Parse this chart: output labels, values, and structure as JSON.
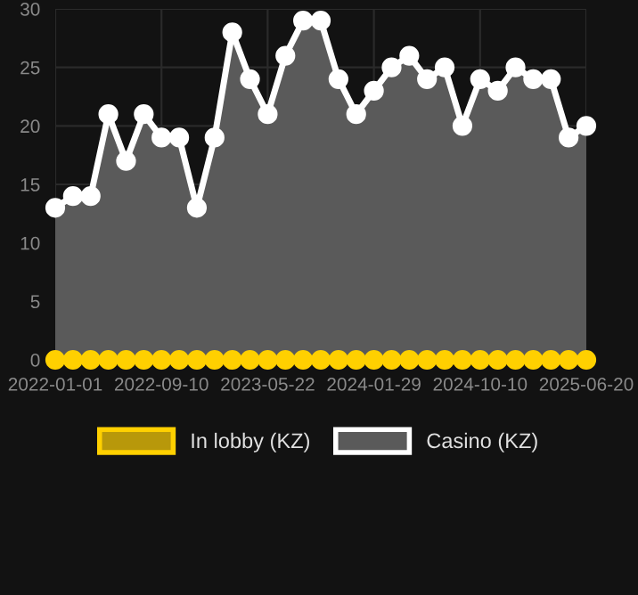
{
  "chart_data": {
    "type": "area",
    "categories": [
      "2022-01-01",
      null,
      null,
      null,
      null,
      null,
      "2022-09-10",
      null,
      null,
      null,
      null,
      null,
      "2023-05-22",
      null,
      null,
      null,
      null,
      null,
      "2024-01-29",
      null,
      null,
      null,
      null,
      null,
      "2024-10-10",
      null,
      null,
      null,
      null,
      null,
      "2025-06-20"
    ],
    "series": [
      {
        "name": "In lobby (KZ)",
        "type": "line",
        "color": "#ffd000",
        "values": [
          0,
          0,
          0,
          0,
          0,
          0,
          0,
          0,
          0,
          0,
          0,
          0,
          0,
          0,
          0,
          0,
          0,
          0,
          0,
          0,
          0,
          0,
          0,
          0,
          0,
          0,
          0,
          0,
          0,
          0,
          0
        ]
      },
      {
        "name": "Casino (KZ)",
        "color": "#5a5a5a",
        "values": [
          13,
          14,
          14,
          21,
          17,
          21,
          19,
          19,
          13,
          19,
          28,
          24,
          21,
          26,
          29,
          29,
          24,
          21,
          23,
          25,
          26,
          24,
          25,
          20,
          24,
          23,
          25,
          24,
          24,
          19,
          20
        ]
      }
    ],
    "ylim": [
      0,
      30
    ],
    "yticks": [
      0,
      5,
      10,
      15,
      20,
      25,
      30
    ],
    "grid": true,
    "legend": "bottom",
    "marker": "circle",
    "line_style": "solid"
  }
}
